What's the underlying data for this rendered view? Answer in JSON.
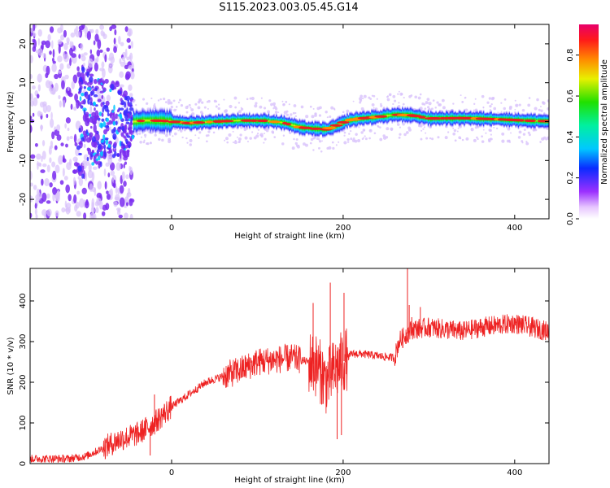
{
  "figure_title": "S115.2023.003.05.45.G14",
  "colors": {
    "snr_line": "#ee2222",
    "ridge_core": "#e82020",
    "scatter_purple": "#7a2cf0",
    "scatter_light": "#d8c2fb",
    "frame": "#000000"
  },
  "chart_data": [
    {
      "type": "heatmap",
      "title": "S115.2023.003.05.45.G14",
      "xlabel": "Height of straight line (km)",
      "ylabel": "Frequency (Hz)",
      "colorbar_label": "Normalized spectral amplitude",
      "xlim": [
        -165,
        440
      ],
      "ylim": [
        -25,
        25
      ],
      "xticks": [
        0,
        200,
        400
      ],
      "yticks": [
        -20,
        -10,
        0,
        10,
        20
      ],
      "colorbar_range": [
        0,
        0.95
      ],
      "colorbar_ticks": [
        0.0,
        0.2,
        0.4,
        0.6,
        0.8
      ],
      "ridge_center_hz": {
        "x": [
          -45,
          -30,
          -10,
          0,
          20,
          50,
          80,
          110,
          130,
          150,
          165,
          180,
          190,
          205,
          220,
          240,
          260,
          280,
          300,
          340,
          380,
          420,
          440
        ],
        "y": [
          0,
          0.3,
          0.2,
          0.0,
          -0.4,
          0.0,
          0.3,
          0.2,
          -0.3,
          -1.5,
          -1.8,
          -2.0,
          -1.2,
          0.3,
          0.8,
          1.2,
          1.8,
          1.6,
          0.8,
          0.9,
          0.6,
          0.2,
          0.1
        ]
      }
    },
    {
      "type": "line",
      "xlabel": "Height of straight line (km)",
      "ylabel": "SNR (10 * v/v)",
      "xlim": [
        -165,
        440
      ],
      "ylim": [
        0,
        480
      ],
      "xticks": [
        0,
        200,
        400
      ],
      "yticks": [
        0,
        100,
        200,
        300,
        400
      ],
      "trend": {
        "x": [
          -165,
          -120,
          -100,
          -80,
          -60,
          -40,
          -20,
          0,
          20,
          40,
          60,
          80,
          100,
          120,
          140,
          160,
          170,
          180,
          190,
          200,
          210,
          220,
          240,
          260,
          265,
          280,
          300,
          320,
          340,
          360,
          380,
          400,
          420,
          440
        ],
        "y": [
          12,
          12,
          18,
          38,
          60,
          72,
          100,
          140,
          170,
          200,
          215,
          230,
          250,
          255,
          260,
          250,
          240,
          200,
          230,
          250,
          270,
          270,
          265,
          260,
          300,
          330,
          335,
          330,
          325,
          335,
          340,
          345,
          335,
          325
        ]
      },
      "spikes": {
        "x": [
          -25,
          -20,
          165,
          175,
          185,
          193,
          198,
          201,
          275,
          277,
          280,
          290
        ],
        "y": [
          20,
          170,
          395,
          180,
          445,
          60,
          70,
          420,
          480,
          390,
          360,
          385
        ]
      }
    }
  ]
}
